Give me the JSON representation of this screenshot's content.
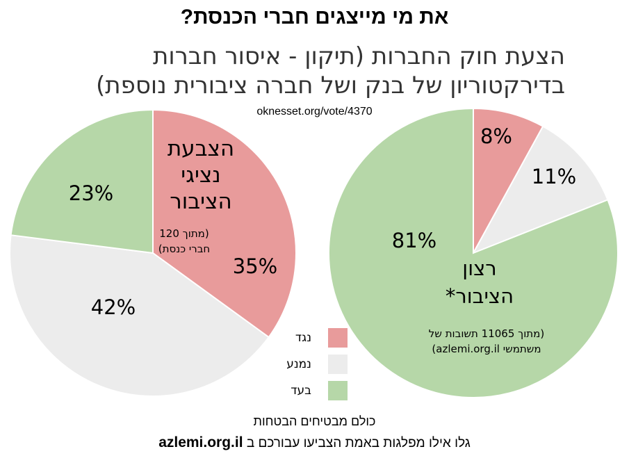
{
  "title": "את מי מייצגים חברי הכנסת?",
  "subtitle": "הצעת חוק החברות (תיקון - איסור חברות בדירקטוריון של בנק ושל חברה ציבורית נוספת)",
  "source": "oknesset.org/vote/4370",
  "colors": {
    "against": "#e89b9b",
    "abstain": "#ececec",
    "for": "#b6d7a8",
    "stroke": "#ffffff"
  },
  "chart_data": [
    {
      "type": "pie",
      "title": "הצבעת נציגי הציבור",
      "note": "(מתוך 120 חברי כנסת)",
      "title_lines": [
        "הצבעת",
        "נציגי",
        "הציבור"
      ],
      "note_lines": [
        "(מתוך 120",
        "חברי כנסת)"
      ],
      "categories": [
        "נגד",
        "נמנע",
        "בעד"
      ],
      "values": [
        35,
        42,
        23
      ],
      "labels": [
        "35%",
        "42%",
        "23%"
      ]
    },
    {
      "type": "pie",
      "title": "רצון הציבור*",
      "note": "(מתוך 11065 תשובות של משתמשי azlemi.org.il)",
      "title_lines": [
        "רצון",
        "הציבור*"
      ],
      "note_lines": [
        "(מתוך 11065 תשובות של",
        "משתמשי azlemi.org.il)"
      ],
      "categories": [
        "נגד",
        "נמנע",
        "בעד"
      ],
      "values": [
        8,
        11,
        81
      ],
      "labels": [
        "8%",
        "11%",
        "81%"
      ]
    }
  ],
  "legend": [
    {
      "label": "נגד",
      "color": "#e89b9b"
    },
    {
      "label": "נמנע",
      "color": "#ececec"
    },
    {
      "label": "בעד",
      "color": "#b6d7a8"
    }
  ],
  "footer": {
    "line1": "כולם מבטיחים הבטחות",
    "line2": "גלו אילו מפלגות באמת הצביעו עבורכם ב",
    "site": "azlemi.org.il"
  }
}
